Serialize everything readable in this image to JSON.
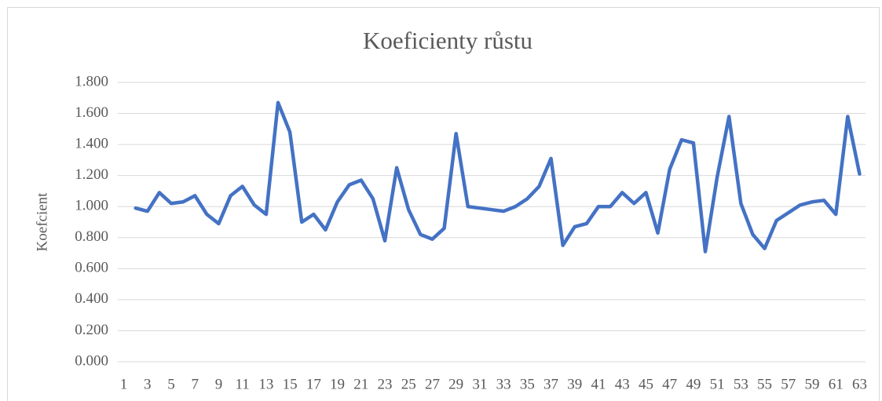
{
  "chart_data": {
    "type": "line",
    "title": "Koeficienty růstu",
    "y_label": "Koefcient",
    "categories": [
      "1",
      null,
      "3",
      null,
      "5",
      null,
      "7",
      null,
      "9",
      null,
      "11",
      null,
      "13",
      null,
      "15",
      null,
      "17",
      null,
      "19",
      null,
      "21",
      null,
      "23",
      null,
      "25",
      null,
      "27",
      null,
      "29",
      null,
      "31",
      null,
      "33",
      null,
      "35",
      null,
      "37",
      null,
      "39",
      null,
      "41",
      null,
      "43",
      null,
      "45",
      null,
      "47",
      null,
      "49",
      null,
      "51",
      null,
      "53",
      null,
      "55",
      null,
      "57",
      null,
      "59",
      null,
      "61",
      null,
      "63"
    ],
    "values": [
      null,
      0.99,
      0.97,
      1.09,
      1.02,
      1.03,
      1.07,
      0.95,
      0.89,
      1.07,
      1.13,
      1.01,
      0.95,
      1.67,
      1.48,
      0.9,
      0.95,
      0.85,
      1.03,
      1.14,
      1.17,
      1.05,
      0.78,
      1.25,
      0.98,
      0.82,
      0.79,
      0.86,
      1.47,
      1.0,
      0.99,
      0.98,
      0.97,
      1.0,
      1.05,
      1.13,
      1.31,
      0.75,
      0.87,
      0.89,
      1.0,
      1.0,
      1.09,
      1.02,
      1.09,
      0.83,
      1.24,
      1.43,
      1.41,
      0.71,
      1.19,
      1.58,
      1.02,
      0.82,
      0.73,
      0.91,
      0.96,
      1.01,
      1.03,
      1.04,
      0.95,
      1.58,
      1.21
    ],
    "color": "#4472c4",
    "ylim": [
      0,
      1.8
    ],
    "yticks": [
      {
        "value": 0,
        "label": "0.000"
      },
      {
        "value": 0.2,
        "label": "0.200"
      },
      {
        "value": 0.4,
        "label": "0.400"
      },
      {
        "value": 0.6,
        "label": "0.600"
      },
      {
        "value": 0.8,
        "label": "0.800"
      },
      {
        "value": 1.0,
        "label": "1.000"
      },
      {
        "value": 1.2,
        "label": "1.200"
      },
      {
        "value": 1.4,
        "label": "1.400"
      },
      {
        "value": 1.6,
        "label": "1.600"
      },
      {
        "value": 1.8,
        "label": "1.800"
      }
    ],
    "grid": true
  }
}
